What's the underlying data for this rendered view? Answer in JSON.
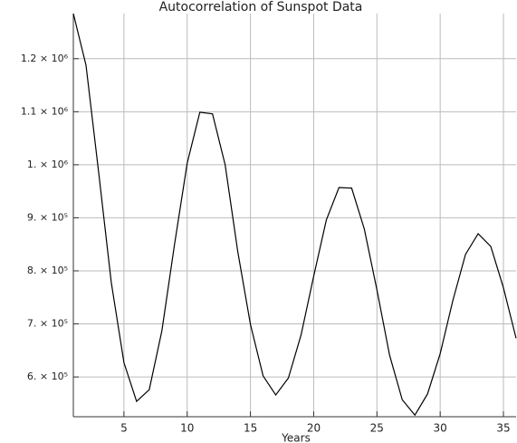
{
  "chart_data": {
    "type": "line",
    "title": "Autocorrelation of Sunspot Data",
    "x_label": "Years",
    "x": [
      1,
      2,
      3,
      4,
      5,
      6,
      7,
      8,
      9,
      10,
      11,
      12,
      13,
      14,
      15,
      16,
      17,
      18,
      19,
      20,
      21,
      22,
      23,
      24,
      25,
      26,
      27,
      28,
      29,
      30,
      31,
      32,
      33,
      34,
      35,
      36
    ],
    "series": [
      {
        "color": "#000000",
        "values": [
          1285000,
          1188000,
          986000,
          778000,
          627000,
          554000,
          576000,
          687000,
          850000,
          1003000,
          1099000,
          1096000,
          1000000,
          836000,
          699000,
          602000,
          566000,
          598000,
          679000,
          790000,
          896000,
          957000,
          956000,
          879000,
          764000,
          641000,
          557000,
          528000,
          568000,
          644000,
          744000,
          831000,
          870000,
          846000,
          768000,
          673000
        ]
      }
    ],
    "xlim": [
      1,
      36
    ],
    "ylim": [
      525000,
      1285000
    ],
    "xticks": [
      5,
      10,
      15,
      20,
      25,
      30,
      35
    ],
    "yticks": [
      {
        "value": 600000,
        "label": "6. × 10⁵"
      },
      {
        "value": 700000,
        "label": "7. × 10⁵"
      },
      {
        "value": 800000,
        "label": "8. × 10⁵"
      },
      {
        "value": 900000,
        "label": "9. × 10⁵"
      },
      {
        "value": 1000000,
        "label": "1. × 10⁶"
      },
      {
        "value": 1100000,
        "label": "1.1 × 10⁶"
      },
      {
        "value": 1200000,
        "label": "1.2 × 10⁶"
      }
    ],
    "grid": true
  }
}
